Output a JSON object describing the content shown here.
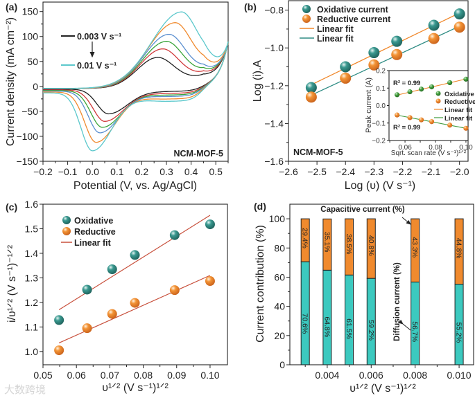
{
  "watermark": "大数跨境",
  "colors": {
    "teal": "#2e8c84",
    "orange": "#f0872a",
    "green": "#3f9b3c",
    "bar_diffusion": "#3cc9bf",
    "bar_capacitive": "#f08a2e",
    "fit_red": "#c8503c"
  },
  "chart_data": [
    {
      "panel": "(a)",
      "type": "line",
      "xlabel": "Potential (V, vs. Ag/AgCl)",
      "ylabel": "Current density (mA cm⁻²)",
      "xlim": [
        -0.2,
        0.55
      ],
      "ylim": [
        -150,
        169
      ],
      "xticks": [
        -0.2,
        -0.1,
        0.0,
        0.1,
        0.2,
        0.3,
        0.4,
        0.5
      ],
      "xtick_labels": [
        "−0.2",
        "−0.1",
        "0.0",
        "0.1",
        "0.2",
        "0.3",
        "0.4",
        "0.5"
      ],
      "yticks": [
        -150,
        -100,
        -50,
        0,
        50,
        100,
        150
      ],
      "ytick_labels": [
        "−150",
        "−100",
        "−50",
        "0",
        "50",
        "100",
        "150"
      ],
      "legend": {
        "first": "0.003 V s⁻¹",
        "last": "0.01 V s⁻¹"
      },
      "annotation": "NCM-MOF-5",
      "series": [
        {
          "color": "#222222",
          "anodic_peak": [
            0.265,
            62
          ],
          "cathodic_peak": [
            0.065,
            -55
          ]
        },
        {
          "color": "#d0393a",
          "anodic_peak": [
            0.285,
            79
          ],
          "cathodic_peak": [
            0.05,
            -70
          ]
        },
        {
          "color": "#3aa43a",
          "anodic_peak": [
            0.3,
            94
          ],
          "cathodic_peak": [
            0.04,
            -82
          ]
        },
        {
          "color": "#5b8fd0",
          "anodic_peak": [
            0.31,
            108
          ],
          "cathodic_peak": [
            0.03,
            -93
          ]
        },
        {
          "color": "#f08a2e",
          "anodic_peak": [
            0.335,
            131
          ],
          "cathodic_peak": [
            0.015,
            -112
          ]
        },
        {
          "color": "#5cc8cc",
          "anodic_peak": [
            0.36,
            152
          ],
          "cathodic_peak": [
            0.0,
            -129
          ]
        }
      ],
      "vertex": [
        0.55,
        90
      ]
    },
    {
      "panel": "(b)",
      "type": "scatter",
      "xlabel": "Log (υ) (V s⁻¹)",
      "ylabel": "Log (i).A",
      "xlim": [
        -2.6,
        -1.97
      ],
      "ylim": [
        -1.6,
        -0.75
      ],
      "xticks": [
        -2.6,
        -2.5,
        -2.4,
        -2.3,
        -2.2,
        -2.1,
        -2.0
      ],
      "xtick_labels": [
        "−2.6",
        "−2.5",
        "−2.4",
        "−2.3",
        "−2.2",
        "−2.1",
        "−2.0"
      ],
      "yticks": [
        -1.6,
        -1.4,
        -1.2,
        -1.0,
        -0.8
      ],
      "ytick_labels": [
        "−1.6",
        "−1.4",
        "−1.2",
        "−1.0",
        "−0.8"
      ],
      "annotation": "NCM-MOF-5",
      "series": [
        {
          "name": "Oxidative current",
          "x": [
            -2.52,
            -2.4,
            -2.3,
            -2.22,
            -2.09,
            -2.0
          ],
          "y": [
            -1.21,
            -1.1,
            -1.025,
            -0.965,
            -0.88,
            -0.82
          ]
        },
        {
          "name": "Reductive current",
          "x": [
            -2.52,
            -2.4,
            -2.3,
            -2.22,
            -2.09,
            -2.0
          ],
          "y": [
            -1.26,
            -1.16,
            -1.09,
            -1.035,
            -0.95,
            -0.89
          ]
        }
      ],
      "fits": [
        {
          "name": "Linear fit",
          "fits_series": "Oxidative current",
          "x": [
            -2.52,
            -2.0
          ],
          "y": [
            -1.195,
            -0.815
          ]
        },
        {
          "name": "Linear fit",
          "fits_series": "Reductive current",
          "x": [
            -2.52,
            -2.0
          ],
          "y": [
            -1.25,
            -0.885
          ]
        }
      ],
      "inset": {
        "type": "scatter",
        "xlabel": "Sqrt. scan rate (V s⁻¹)¹ᐟ²",
        "ylabel": "Peak current (A)",
        "xlim": [
          0.0495,
          0.1014
        ],
        "ylim": [
          -0.2,
          0.2
        ],
        "xticks": [
          0.06,
          0.08,
          0.1
        ],
        "xtick_labels": [
          "0.06",
          "0.08",
          "0.10"
        ],
        "yticks": [
          -0.2,
          -0.1,
          0.0,
          0.1,
          0.2
        ],
        "ytick_labels": [
          "−0.2",
          "−0.1",
          "0.0",
          "0.1",
          "0.2"
        ],
        "r2_top": "R² = 0.99",
        "r2_bottom": "R² = 0.99",
        "series": [
          {
            "name": "Oxidative",
            "x": [
              0.0548,
              0.0632,
              0.0707,
              0.0775,
              0.0894,
              0.1
            ],
            "y": [
              0.062,
              0.079,
              0.094,
              0.107,
              0.131,
              0.151
            ]
          },
          {
            "name": "Reductive",
            "x": [
              0.0548,
              0.0632,
              0.0707,
              0.0775,
              0.0894,
              0.1
            ],
            "y": [
              -0.054,
              -0.069,
              -0.082,
              -0.092,
              -0.112,
              -0.13
            ]
          }
        ],
        "fits": [
          {
            "name": "Linear fit",
            "x": [
              0.0548,
              0.1
            ],
            "y": [
              0.06,
              0.152
            ]
          },
          {
            "name": "Linear fit",
            "x": [
              0.0548,
              0.1
            ],
            "y": [
              -0.055,
              -0.13
            ]
          }
        ]
      }
    },
    {
      "panel": "(c)",
      "type": "scatter",
      "xlabel": "υ¹ᐟ² (V s⁻¹)¹ᐟ²",
      "ylabel": "i/υ¹ᐟ² (V s⁻¹)⁻¹ᐟ²",
      "xlim": [
        0.05,
        0.1052
      ],
      "ylim": [
        0.946,
        1.6
      ],
      "xticks": [
        0.05,
        0.06,
        0.07,
        0.08,
        0.09,
        0.1
      ],
      "xtick_labels": [
        "0.05",
        "0.06",
        "0.07",
        "0.08",
        "0.09",
        "0.10"
      ],
      "yticks": [
        1.0,
        1.1,
        1.2,
        1.3,
        1.4,
        1.5,
        1.6
      ],
      "ytick_labels": [
        "1.0",
        "1.1",
        "1.2",
        "1.3",
        "1.4",
        "1.5",
        "1.6"
      ],
      "series": [
        {
          "name": "Oxidative",
          "x": [
            0.0548,
            0.0632,
            0.0707,
            0.0775,
            0.0894,
            0.1
          ],
          "y": [
            1.128,
            1.252,
            1.335,
            1.393,
            1.474,
            1.518
          ]
        },
        {
          "name": "Reductive",
          "x": [
            0.0548,
            0.0632,
            0.0707,
            0.0775,
            0.0894,
            0.1
          ],
          "y": [
            1.005,
            1.095,
            1.153,
            1.198,
            1.25,
            1.287
          ]
        }
      ],
      "fits": [
        {
          "name": "Linear fit",
          "x": [
            0.0548,
            0.1
          ],
          "y": [
            1.17,
            1.555
          ]
        },
        {
          "name": "Linear fit",
          "x": [
            0.0548,
            0.1
          ],
          "y": [
            1.035,
            1.31
          ]
        }
      ]
    },
    {
      "panel": "(d)",
      "type": "bar",
      "xlabel": "υ¹ᐟ² (V s⁻¹)¹ᐟ²",
      "ylabel": "Current contribution (%)",
      "xlim": [
        0.0023,
        0.01066
      ],
      "ylim": [
        0,
        110
      ],
      "xticks": [
        0.004,
        0.006,
        0.008,
        0.01
      ],
      "xtick_labels": [
        "0.004",
        "0.006",
        "0.008",
        "0.010"
      ],
      "xminor": [
        0.003,
        0.005,
        0.007,
        0.009
      ],
      "yticks": [
        0,
        20,
        40,
        60,
        80,
        100
      ],
      "ytick_labels": [
        "0",
        "20",
        "40",
        "60",
        "80",
        "100"
      ],
      "x": [
        0.003,
        0.004,
        0.005,
        0.006,
        0.008,
        0.01
      ],
      "series": [
        {
          "name": "Diffusion current (%)",
          "values": [
            70.6,
            64.8,
            61.5,
            59.2,
            56.7,
            55.2
          ],
          "labels": [
            "70.6%",
            "64.8%",
            "61.5%",
            "59.2%",
            "56.7%",
            "55.2%"
          ]
        },
        {
          "name": "Capacitive current (%)",
          "values": [
            29.4,
            35.1,
            38.5,
            40.8,
            43.3,
            44.8
          ],
          "labels": [
            "29.4%",
            "35.1%",
            "38.5%",
            "40.8%",
            "43.3%",
            "44.8%"
          ]
        }
      ],
      "annotations": {
        "capacitive": "Capacitive current (%)",
        "diffusion": "Diffusion current (%)"
      }
    }
  ]
}
